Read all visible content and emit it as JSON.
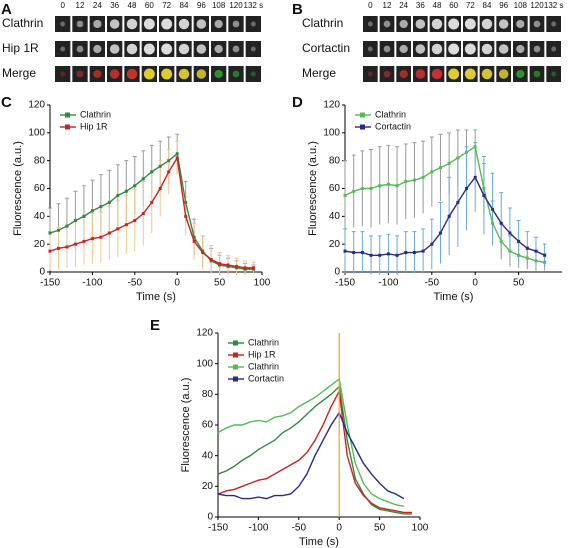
{
  "panel_labels": [
    "A",
    "B",
    "C",
    "D",
    "E"
  ],
  "strips": [
    {
      "rows": [
        "Clathrin",
        "Hip 1R",
        "Merge"
      ],
      "times": [
        "0",
        "12",
        "24",
        "36",
        "48",
        "60",
        "72",
        "84",
        "96",
        "108",
        "120",
        "132 s"
      ]
    },
    {
      "rows": [
        "Clathrin",
        "Cortactin",
        "Merge"
      ],
      "times": [
        "0",
        "12",
        "24",
        "36",
        "48",
        "60",
        "72",
        "84",
        "96",
        "108",
        "120",
        "132 s"
      ]
    }
  ],
  "chart_data": [
    {
      "type": "line",
      "xlabel": "Time (s)",
      "ylabel": "Fluorescence (a.u.)",
      "x": [
        -150,
        -140,
        -130,
        -120,
        -110,
        -100,
        -90,
        -80,
        -70,
        -60,
        -50,
        -40,
        -30,
        -20,
        -10,
        0,
        10,
        20,
        30,
        40,
        50,
        60,
        70,
        80,
        90
      ],
      "xlim": [
        -150,
        100
      ],
      "xticks": [
        -150,
        -100,
        -50,
        0,
        50,
        100
      ],
      "ylim": [
        0,
        120
      ],
      "yticks": [
        0,
        20,
        40,
        60,
        80,
        100,
        120
      ],
      "series": [
        {
          "name": "Clathrin",
          "color": "#2e8b3c",
          "error_color": "#9a9a9a",
          "values": [
            28,
            30,
            33,
            37,
            40,
            44,
            47,
            50,
            55,
            58,
            62,
            67,
            72,
            76,
            80,
            85,
            50,
            25,
            15,
            8,
            5,
            4,
            3,
            2,
            2
          ],
          "errors": [
            18,
            19,
            20,
            21,
            22,
            22,
            23,
            23,
            22,
            22,
            21,
            20,
            19,
            18,
            17,
            14,
            15,
            13,
            11,
            9,
            7,
            6,
            5,
            4,
            3
          ]
        },
        {
          "name": "Hip 1R",
          "color": "#cc2222",
          "error_color": "#f5c68f",
          "values": [
            15,
            17,
            18,
            20,
            22,
            24,
            25,
            28,
            31,
            34,
            37,
            42,
            50,
            60,
            72,
            82,
            40,
            22,
            14,
            9,
            6,
            5,
            4,
            3,
            3
          ],
          "errors": [
            14,
            15,
            15,
            16,
            17,
            18,
            18,
            19,
            20,
            21,
            22,
            23,
            22,
            20,
            16,
            12,
            14,
            13,
            12,
            10,
            8,
            7,
            6,
            5,
            4
          ]
        }
      ]
    },
    {
      "type": "line",
      "xlabel": "Time (s)",
      "ylabel": "Fluorescence (a.u.)",
      "x": [
        -150,
        -140,
        -130,
        -120,
        -110,
        -100,
        -90,
        -80,
        -70,
        -60,
        -50,
        -40,
        -30,
        -20,
        -10,
        0,
        10,
        20,
        30,
        40,
        50,
        60,
        70,
        80,
        90
      ],
      "xlim": [
        -150,
        100
      ],
      "xticks": [
        -150,
        -100,
        -50,
        0,
        50
      ],
      "ylim": [
        0,
        120
      ],
      "yticks": [
        0,
        20,
        40,
        60,
        80,
        100,
        120
      ],
      "series": [
        {
          "name": "Clathrin",
          "color": "#55bb55",
          "error_color": "#9a9a9a",
          "values": [
            55,
            58,
            60,
            60,
            62,
            63,
            62,
            65,
            66,
            68,
            72,
            75,
            78,
            82,
            86,
            90,
            60,
            35,
            22,
            15,
            12,
            10,
            8,
            7,
            null
          ],
          "errors": [
            25,
            26,
            27,
            28,
            28,
            28,
            28,
            27,
            27,
            26,
            25,
            24,
            22,
            20,
            16,
            12,
            18,
            16,
            13,
            11,
            9,
            8,
            7,
            6,
            null
          ]
        },
        {
          "name": "Cortactin",
          "color": "#2a2a8a",
          "error_color": "#66aadd",
          "values": [
            15,
            14,
            14,
            12,
            12,
            13,
            12,
            14,
            14,
            15,
            20,
            28,
            40,
            50,
            60,
            68,
            55,
            45,
            35,
            28,
            22,
            17,
            15,
            12,
            null
          ],
          "errors": [
            16,
            15,
            15,
            14,
            14,
            14,
            14,
            15,
            15,
            16,
            18,
            22,
            28,
            32,
            30,
            25,
            28,
            26,
            22,
            18,
            15,
            12,
            10,
            8,
            null
          ]
        }
      ]
    },
    {
      "type": "line",
      "xlabel": "Time (s)",
      "ylabel": "Fluorescence (a.u.)",
      "marker_x": 0,
      "marker_color": "#f0a020",
      "x": [
        -150,
        -140,
        -130,
        -120,
        -110,
        -100,
        -90,
        -80,
        -70,
        -60,
        -50,
        -40,
        -30,
        -20,
        -10,
        0,
        10,
        20,
        30,
        40,
        50,
        60,
        70,
        80,
        90
      ],
      "xlim": [
        -150,
        100
      ],
      "xticks": [
        -150,
        -100,
        -50,
        0,
        50,
        100
      ],
      "ylim": [
        0,
        120
      ],
      "yticks": [
        0,
        20,
        40,
        60,
        80,
        100,
        120
      ],
      "series": [
        {
          "name": "Clathrin",
          "color": "#2e8b3c",
          "values": [
            28,
            30,
            33,
            37,
            40,
            44,
            47,
            50,
            55,
            58,
            62,
            67,
            72,
            76,
            80,
            85,
            50,
            25,
            15,
            8,
            5,
            4,
            3,
            2,
            2
          ]
        },
        {
          "name": "Hip 1R",
          "color": "#cc2222",
          "values": [
            15,
            17,
            18,
            20,
            22,
            24,
            25,
            28,
            31,
            34,
            37,
            42,
            50,
            60,
            72,
            82,
            40,
            22,
            14,
            9,
            6,
            5,
            4,
            3,
            3
          ]
        },
        {
          "name": "Clathrin",
          "color": "#55bb55",
          "values": [
            55,
            58,
            60,
            60,
            62,
            63,
            62,
            65,
            66,
            68,
            72,
            75,
            78,
            82,
            86,
            90,
            60,
            35,
            22,
            15,
            12,
            10,
            8,
            7,
            null
          ]
        },
        {
          "name": "Cortactin",
          "color": "#2a2a8a",
          "values": [
            15,
            14,
            14,
            12,
            12,
            13,
            12,
            14,
            14,
            15,
            20,
            28,
            40,
            50,
            60,
            68,
            55,
            45,
            35,
            28,
            22,
            17,
            15,
            12,
            null
          ]
        }
      ]
    }
  ]
}
